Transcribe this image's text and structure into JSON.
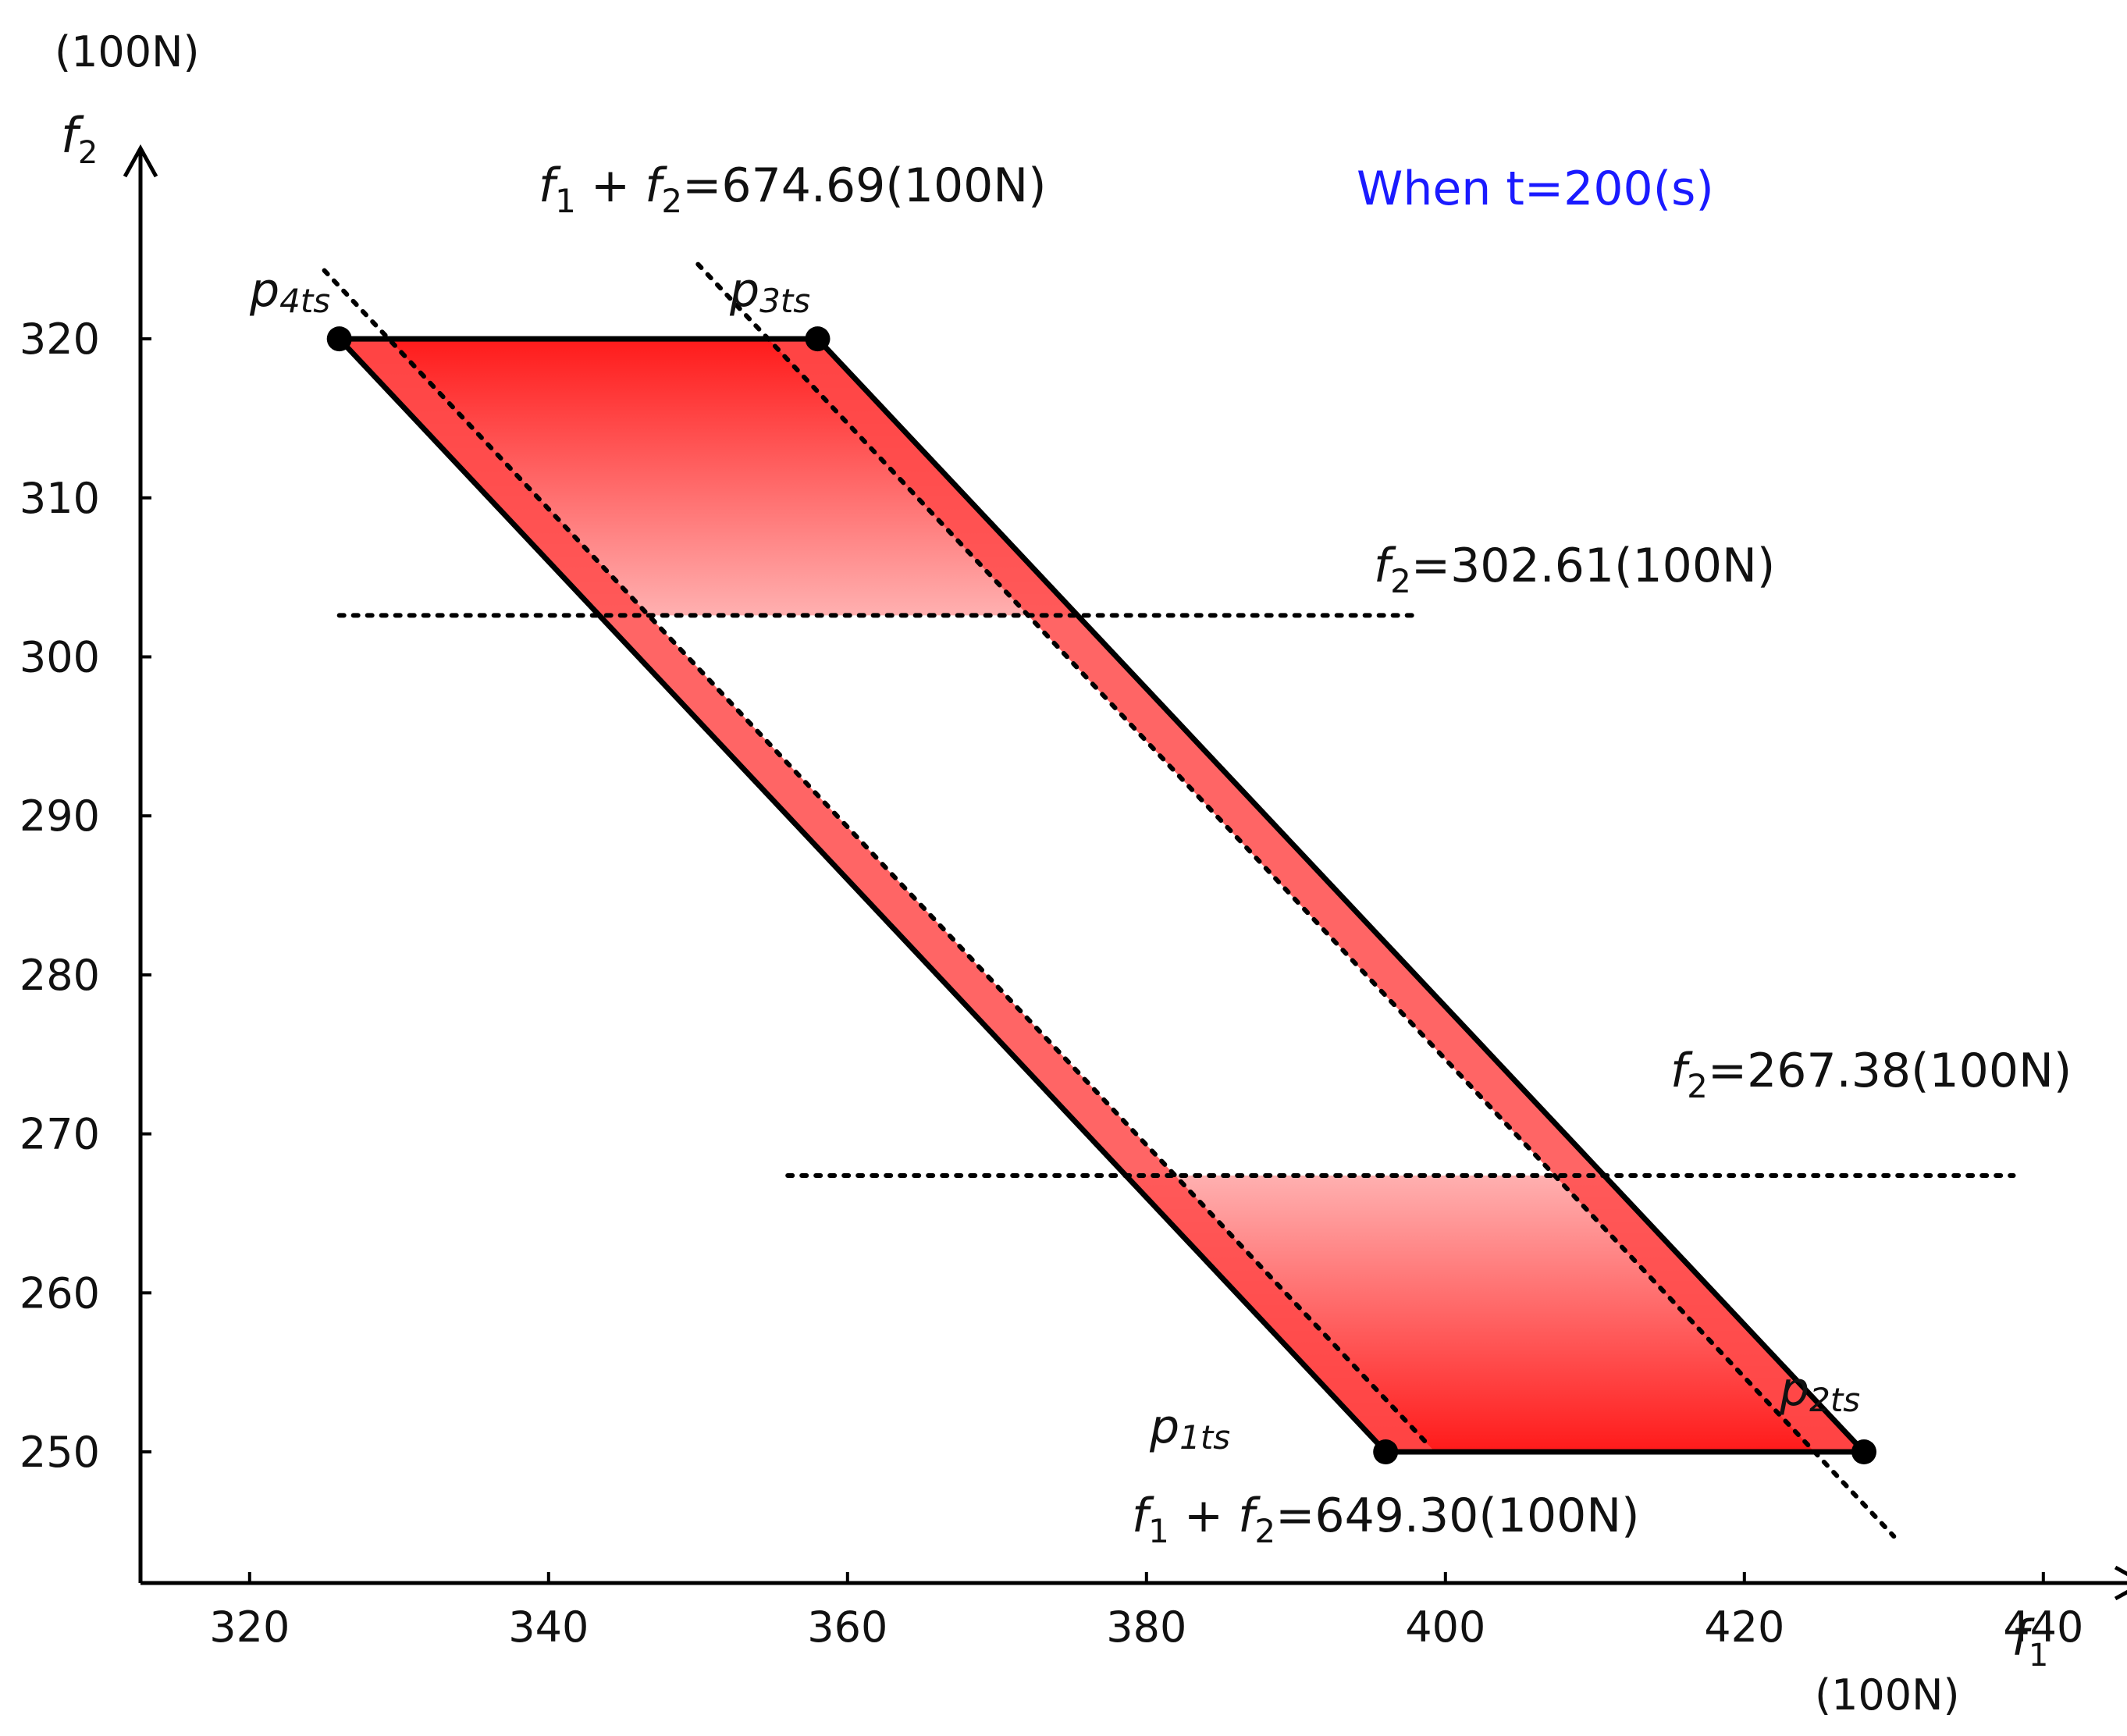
{
  "chart_data": {
    "type": "area",
    "title": "When t=200(s)",
    "title_color": "#1a1aff",
    "accent_color": "#ff1a1a",
    "x_axis": {
      "symbol": "f1",
      "unit": "(100N)",
      "range": [
        318,
        442
      ],
      "ticks": [
        320,
        340,
        360,
        380,
        400,
        420,
        440
      ],
      "tick_labels": [
        "320",
        "340",
        "360",
        "380",
        "400",
        "420",
        "440"
      ]
    },
    "y_axis": {
      "symbol": "f2",
      "unit": "(100N)",
      "range": [
        241,
        331
      ],
      "ticks": [
        250,
        260,
        270,
        280,
        290,
        300,
        310,
        320
      ],
      "tick_labels": [
        "250",
        "260",
        "270",
        "280",
        "290",
        "300",
        "310",
        "320"
      ]
    },
    "vertices": [
      {
        "name": "p1ts",
        "base": "p",
        "sub": "1ts",
        "x": 396,
        "y": 250
      },
      {
        "name": "p2ts",
        "base": "p",
        "sub": "2ts",
        "x": 428,
        "y": 250
      },
      {
        "name": "p3ts",
        "base": "p",
        "sub": "3ts",
        "x": 358,
        "y": 320
      },
      {
        "name": "p4ts",
        "base": "p",
        "sub": "4ts",
        "x": 326,
        "y": 320
      }
    ],
    "dotted_lines": [
      {
        "name": "sum-upper",
        "kind": "sum",
        "value": 674.69,
        "x_range": [
          350,
          430
        ]
      },
      {
        "name": "sum-lower",
        "kind": "sum",
        "value": 649.3,
        "x_range": [
          325,
          399
        ]
      },
      {
        "name": "f2-upper",
        "kind": "horizontal",
        "value": 302.61,
        "x_range": [
          326,
          398
        ]
      },
      {
        "name": "f2-lower",
        "kind": "horizontal",
        "value": 267.38,
        "x_range": [
          356,
          438
        ]
      }
    ],
    "shaded_bands": [
      {
        "name": "top-band",
        "y_range": [
          302.61,
          320
        ]
      },
      {
        "name": "bottom-band",
        "y_range": [
          250,
          267.38
        ]
      }
    ],
    "annotations": {
      "sum_upper": {
        "lhs1": "f",
        "sub1": "1",
        "plus": " + ",
        "lhs2": "f",
        "sub2": "2",
        "rhs": "=674.69(100N)"
      },
      "sum_lower": {
        "lhs1": "f",
        "sub1": "1",
        "plus": " + ",
        "lhs2": "f",
        "sub2": "2",
        "rhs": "=649.30(100N)"
      },
      "f2_upper": {
        "lhs": "f",
        "sub": "2",
        "rhs": "=302.61(100N)"
      },
      "f2_lower": {
        "lhs": "f",
        "sub": "2",
        "rhs": "=267.38(100N)"
      }
    }
  }
}
